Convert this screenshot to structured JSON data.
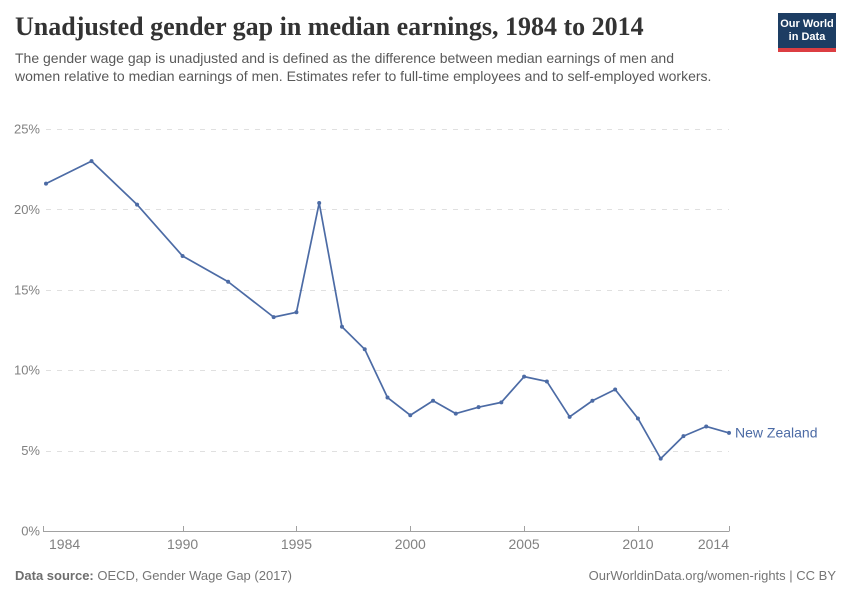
{
  "header": {
    "title": "Unadjusted gender gap in median earnings, 1984 to 2014",
    "subtitle": "The gender wage gap is unadjusted and is defined as the difference between median earnings of men and women relative to median earnings of men. Estimates refer to full-time employees and to self-employed workers.",
    "logo": {
      "line1": "Our World",
      "line2": "in Data"
    }
  },
  "colors": {
    "series_blue": "#4c6ba5",
    "gridline": "#e0e0e0",
    "axis_line": "#a1a1a1",
    "tick_label": "#818181",
    "logo_bg": "#1d3d63",
    "logo_accent": "#dc3e42"
  },
  "chart_data": {
    "type": "line",
    "title": "Unadjusted gender gap in median earnings, 1984 to 2014",
    "xlabel": "",
    "ylabel": "",
    "xlim": [
      1984,
      2014
    ],
    "ylim": [
      0,
      25
    ],
    "x_ticks": [
      1984,
      1990,
      1995,
      2000,
      2005,
      2010,
      2014
    ],
    "y_ticks": [
      0,
      5,
      10,
      15,
      20,
      25
    ],
    "y_tick_suffix": "%",
    "grid": "horizontal-dashed",
    "legend_position": "end-of-line",
    "series": [
      {
        "name": "New Zealand",
        "color": "#4c6ba5",
        "x": [
          1984,
          1986,
          1988,
          1990,
          1992,
          1994,
          1995,
          1996,
          1997,
          1998,
          1999,
          2000,
          2001,
          2002,
          2003,
          2004,
          2005,
          2006,
          2007,
          2008,
          2009,
          2010,
          2011,
          2012,
          2013,
          2014
        ],
        "y": [
          21.6,
          23.0,
          20.3,
          17.1,
          15.5,
          13.3,
          13.6,
          20.4,
          12.7,
          11.3,
          8.3,
          7.2,
          8.1,
          7.3,
          7.7,
          8.0,
          9.6,
          9.3,
          7.1,
          8.1,
          8.8,
          7.0,
          4.5,
          5.9,
          6.5,
          6.1
        ]
      }
    ]
  },
  "footer": {
    "source_label": "Data source:",
    "source_text": " OECD, Gender Wage Gap (2017)",
    "credit": "OurWorldinData.org/women-rights | CC BY"
  }
}
